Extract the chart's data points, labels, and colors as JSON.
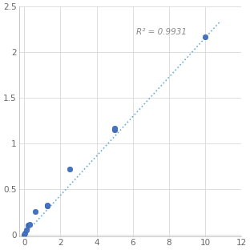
{
  "x": [
    0.0,
    0.05,
    0.1,
    0.2,
    0.3,
    0.625,
    1.25,
    1.25,
    2.5,
    5.0,
    5.0,
    10.0
  ],
  "y": [
    0.0,
    0.02,
    0.05,
    0.1,
    0.11,
    0.25,
    0.31,
    0.32,
    0.72,
    1.15,
    1.17,
    2.17
  ],
  "trendline_x": [
    0.0,
    10.8
  ],
  "trendline_y": [
    0.0,
    2.33
  ],
  "r2_text": "R² = 0.9931",
  "r2_x": 6.2,
  "r2_y": 2.22,
  "marker_color": "#4472C4",
  "marker_edge_color": "#2E5DA6",
  "line_color": "#6aaed6",
  "xlim": [
    -0.3,
    12
  ],
  "ylim": [
    -0.02,
    2.5
  ],
  "xticks": [
    0,
    2,
    4,
    6,
    8,
    10,
    12
  ],
  "yticks": [
    0,
    0.5,
    1,
    1.5,
    2,
    2.5
  ],
  "ytick_labels": [
    "0",
    "0.5",
    "1",
    "1.5",
    "2",
    "2.5"
  ],
  "grid_color": "#D8D8D8",
  "background_color": "#FFFFFF",
  "annotation_color": "#888888",
  "annotation_fontsize": 7.5,
  "tick_fontsize": 7.5,
  "marker_size": 22
}
